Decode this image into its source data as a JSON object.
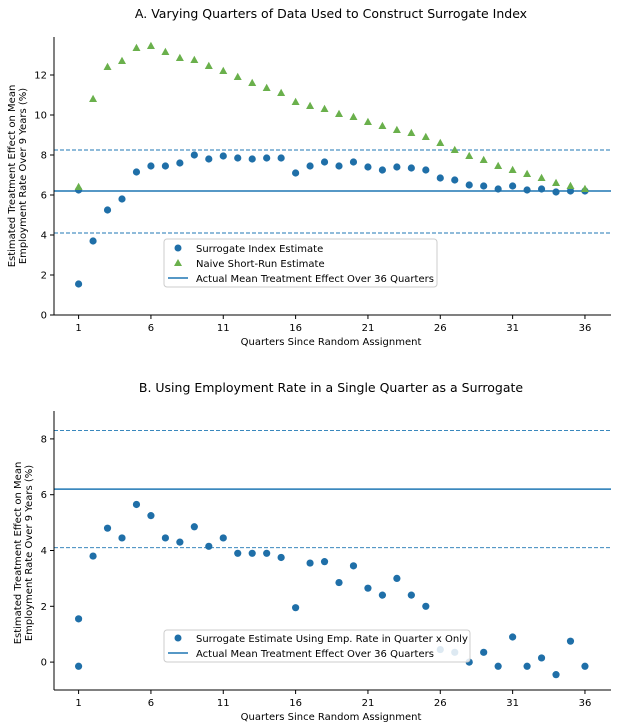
{
  "chart_data": [
    {
      "type": "scatter",
      "title": "A. Varying Quarters of Data Used to Construct Surrogate Index",
      "xlabel": "Quarters Since Random Assignment",
      "ylabel_lines": [
        "Estimated Treatment Effect on Mean",
        "Employment Rate Over 9 Years (%)"
      ],
      "xticks": [
        1,
        6,
        11,
        16,
        21,
        26,
        31,
        36
      ],
      "yticks": [
        0,
        2,
        4,
        6,
        8,
        10,
        12
      ],
      "xlim": [
        -0.7,
        37.8
      ],
      "ylim": [
        0,
        13.9
      ],
      "grid": false,
      "legend_position": "lower center",
      "hlines": [
        {
          "y": 6.2,
          "style": "solid",
          "color": "#1f77b4"
        },
        {
          "y": 8.25,
          "style": "dashed",
          "color": "#1f77b4"
        },
        {
          "y": 4.1,
          "style": "dashed",
          "color": "#1f77b4"
        }
      ],
      "series": [
        {
          "name": "Surrogate Index Estimate",
          "marker": "circle",
          "color": "#1f6fa8",
          "x": [
            1,
            1,
            2,
            3,
            4,
            5,
            6,
            7,
            8,
            9,
            10,
            11,
            12,
            13,
            14,
            15,
            16,
            17,
            18,
            19,
            20,
            21,
            22,
            23,
            24,
            25,
            26,
            27,
            28,
            29,
            30,
            31,
            32,
            33,
            34,
            35,
            36
          ],
          "y": [
            1.55,
            6.25,
            3.7,
            5.25,
            5.8,
            7.15,
            7.45,
            7.45,
            7.6,
            8.0,
            7.8,
            7.95,
            7.85,
            7.8,
            7.85,
            7.85,
            7.1,
            7.45,
            7.65,
            7.45,
            7.65,
            7.4,
            7.25,
            7.4,
            7.35,
            7.25,
            6.85,
            6.75,
            6.5,
            6.45,
            6.3,
            6.45,
            6.25,
            6.3,
            6.15,
            6.2,
            6.2
          ]
        },
        {
          "name": "Naive Short-Run Estimate",
          "marker": "triangle",
          "color": "#6ab04c",
          "x": [
            1,
            2,
            3,
            4,
            5,
            6,
            7,
            8,
            9,
            10,
            11,
            12,
            13,
            14,
            15,
            16,
            17,
            18,
            19,
            20,
            21,
            22,
            23,
            24,
            25,
            26,
            27,
            28,
            29,
            30,
            31,
            32,
            33,
            34,
            35,
            36
          ],
          "y": [
            6.4,
            10.8,
            12.4,
            12.7,
            13.35,
            13.45,
            13.15,
            12.85,
            12.75,
            12.45,
            12.2,
            11.9,
            11.6,
            11.35,
            11.1,
            10.65,
            10.45,
            10.3,
            10.05,
            9.9,
            9.65,
            9.45,
            9.25,
            9.1,
            8.9,
            8.6,
            8.25,
            7.95,
            7.75,
            7.45,
            7.25,
            7.05,
            6.85,
            6.6,
            6.45,
            6.3
          ]
        }
      ],
      "reference_line_name": "Actual Mean Treatment Effect Over 36 Quarters"
    },
    {
      "type": "scatter",
      "title": "B. Using Employment Rate in a Single Quarter as a Surrogate",
      "xlabel": "Quarters Since Random Assignment",
      "ylabel_lines": [
        "Estimated Treatment Effect on Mean",
        "Employment Rate Over 9 Years (%)"
      ],
      "xticks": [
        1,
        6,
        11,
        16,
        21,
        26,
        31,
        36
      ],
      "yticks": [
        0,
        2,
        4,
        6,
        8
      ],
      "xlim": [
        -0.7,
        37.8
      ],
      "ylim": [
        -1.0,
        9.0
      ],
      "grid": false,
      "legend_position": "lower center",
      "hlines": [
        {
          "y": 6.2,
          "style": "solid",
          "color": "#1f77b4"
        },
        {
          "y": 8.3,
          "style": "dashed",
          "color": "#1f77b4"
        },
        {
          "y": 4.1,
          "style": "dashed",
          "color": "#1f77b4"
        }
      ],
      "series": [
        {
          "name": "Surrogate Estimate Using Emp. Rate in Quarter x Only",
          "marker": "circle",
          "color": "#1f6fa8",
          "x": [
            1,
            1,
            2,
            3,
            4,
            5,
            6,
            7,
            8,
            9,
            10,
            11,
            12,
            13,
            14,
            15,
            16,
            17,
            18,
            19,
            20,
            21,
            22,
            23,
            24,
            25,
            26,
            27,
            28,
            29,
            30,
            31,
            32,
            33,
            34,
            35,
            36
          ],
          "y": [
            1.55,
            -0.15,
            3.8,
            4.8,
            4.45,
            5.65,
            5.25,
            4.45,
            4.3,
            4.85,
            4.15,
            4.45,
            3.9,
            3.9,
            3.9,
            3.75,
            1.95,
            3.55,
            3.6,
            2.85,
            3.45,
            2.65,
            2.4,
            3.0,
            2.4,
            2.0,
            0.45,
            0.35,
            0.0,
            0.35,
            -0.15,
            0.9,
            -0.15,
            0.15,
            -0.45,
            0.75,
            -0.15
          ]
        }
      ],
      "reference_line_name": "Actual Mean Treatment Effect Over 36 Quarters"
    }
  ]
}
